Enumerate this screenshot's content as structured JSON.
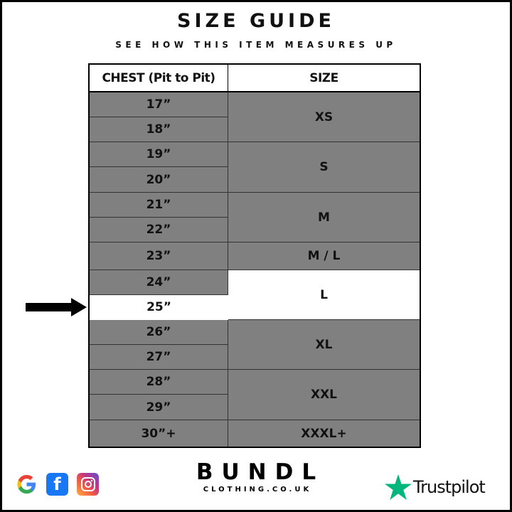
{
  "header": {
    "title": "SIZE GUIDE",
    "subtitle": "SEE HOW THIS ITEM MEASURES UP"
  },
  "table": {
    "columns": [
      "CHEST (Pit to Pit)",
      "SIZE"
    ],
    "chest": [
      "17”",
      "18”",
      "19”",
      "20”",
      "21”",
      "22”",
      "23”",
      "24”",
      "25”",
      "26”",
      "27”",
      "28”",
      "29”",
      "30”+"
    ],
    "sizes": [
      "XS",
      "S",
      "M",
      "M / L",
      "L",
      "XL",
      "XXL",
      "XXXL+"
    ],
    "highlighted_chest": "25”",
    "highlighted_size": "L",
    "cell_color": "#808080",
    "highlight_color": "#ffffff"
  },
  "footer": {
    "social_icons": [
      "google-icon",
      "facebook-icon",
      "instagram-icon"
    ],
    "brand": "BUNDL",
    "brand_sub": "CLOTHING.CO.UK",
    "trustpilot": "Trustpilot",
    "trustpilot_color": "#00b67a"
  }
}
